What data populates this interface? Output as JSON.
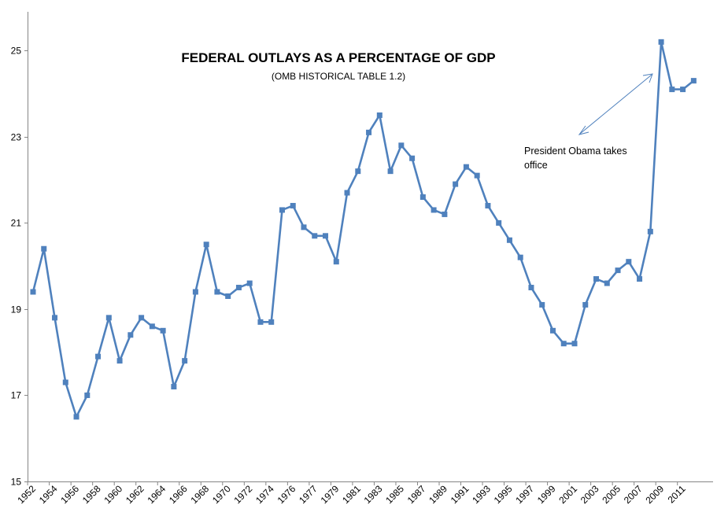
{
  "chart_data": {
    "type": "line",
    "title": "FEDERAL OUTLAYS AS A PERCENTAGE  OF GDP",
    "subtitle": "(OMB HISTORICAL TABLE 1.2)",
    "xlabel": "",
    "ylabel": "",
    "ylim": [
      15,
      25.9
    ],
    "yticks": [
      15,
      17,
      19,
      21,
      23,
      25
    ],
    "ytick_labels": [
      "15",
      "17",
      "19",
      "21",
      "23",
      "25"
    ],
    "xtick_labels": [
      "1952",
      "1954",
      "1956",
      "1958",
      "1960",
      "1962",
      "1964",
      "1966",
      "1968",
      "1970",
      "1972",
      "1974",
      "1976",
      "1977",
      "1979",
      "1981",
      "1983",
      "1985",
      "1987",
      "1989",
      "1991",
      "1993",
      "1995",
      "1997",
      "1999",
      "2001",
      "2003",
      "2005",
      "2007",
      "2009",
      "2011"
    ],
    "grid": false,
    "legend": "none",
    "line_color": "#4F81BD",
    "marker": "square",
    "series": [
      {
        "values": [
          19.4,
          20.4,
          18.8,
          17.3,
          16.5,
          17.0,
          17.9,
          18.8,
          17.8,
          18.4,
          18.8,
          18.6,
          18.5,
          17.2,
          17.8,
          19.4,
          20.5,
          19.4,
          19.3,
          19.5,
          19.6,
          18.7,
          18.7,
          21.3,
          21.4,
          20.9,
          20.7,
          20.7,
          20.1,
          21.7,
          22.2,
          23.1,
          23.5,
          22.2,
          22.8,
          22.5,
          21.6,
          21.3,
          21.2,
          21.9,
          22.3,
          22.1,
          21.4,
          21.0,
          20.6,
          20.2,
          19.5,
          19.1,
          18.5,
          18.2,
          18.2,
          19.1,
          19.7,
          19.6,
          19.9,
          20.1,
          19.7,
          20.8,
          25.2,
          24.1,
          24.1,
          24.3
        ]
      }
    ],
    "annotation": {
      "text_line1": "President Obama takes",
      "text_line2": "office",
      "arrow_color": "#4F81BD"
    }
  }
}
